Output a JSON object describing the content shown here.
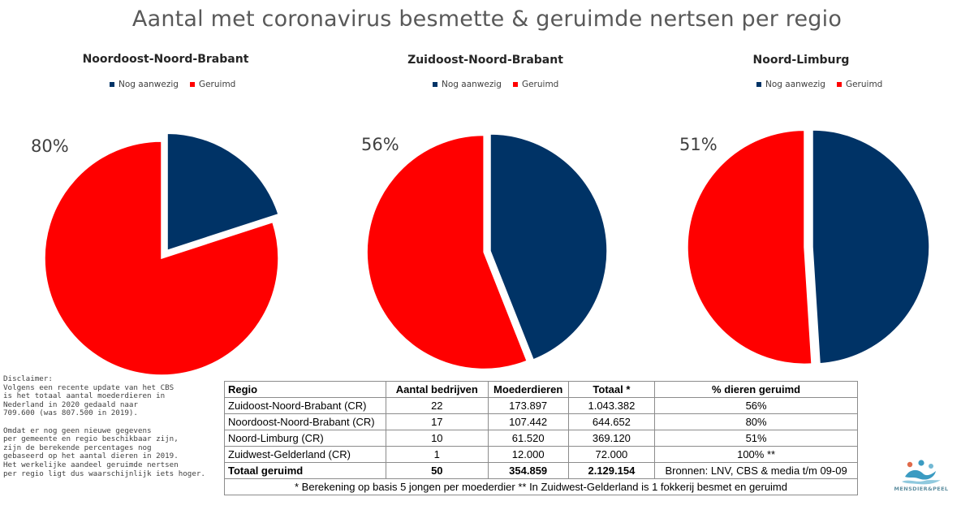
{
  "title": "Aantal met coronavirus besmette & geruimde nertsen per regio",
  "colors": {
    "nog_aanwezig": "#003366",
    "geruimd": "#ff0000"
  },
  "chart_data": [
    {
      "type": "pie",
      "title": "Noordoost-Noord-Brabant",
      "labels": [
        "Nog aanwezig",
        "Geruimd"
      ],
      "values": [
        20,
        80
      ],
      "data_label": "80%",
      "legend": "top",
      "exploded": "Nog aanwezig"
    },
    {
      "type": "pie",
      "title": "Zuidoost-Noord-Brabant",
      "labels": [
        "Nog aanwezig",
        "Geruimd"
      ],
      "values": [
        44,
        56
      ],
      "data_label": "56%",
      "legend": "top",
      "exploded": "Geruimd"
    },
    {
      "type": "pie",
      "title": "Noord-Limburg",
      "labels": [
        "Nog aanwezig",
        "Geruimd"
      ],
      "values": [
        49,
        51
      ],
      "data_label": "51%",
      "legend": "top",
      "exploded": "Geruimd"
    }
  ],
  "disclaimer": {
    "paragraphs": [
      [
        "Disclaimer:",
        "Volgens een recente update van het CBS",
        "is het totaal aantal moederdieren in",
        "Nederland in 2020 gedaald naar",
        "709.600 (was 807.500 in 2019)."
      ],
      [
        "Omdat er nog geen nieuwe gegevens",
        "per gemeente en regio beschikbaar zijn,",
        "zijn de berekende percentages nog",
        "gebaseerd op het aantal dieren in 2019.",
        "Het werkelijke aandeel geruimde nertsen",
        "per regio ligt dus waarschijnlijk iets hoger."
      ]
    ]
  },
  "table": {
    "headers": [
      "Regio",
      "Aantal bedrijven",
      "Moederdieren",
      "Totaal *",
      "% dieren geruimd"
    ],
    "rows": [
      [
        "Zuidoost-Noord-Brabant (CR)",
        "22",
        "173.897",
        "1.043.382",
        "56%"
      ],
      [
        "Noordoost-Noord-Brabant (CR)",
        "17",
        "107.442",
        "644.652",
        "80%"
      ],
      [
        "Noord-Limburg (CR)",
        "10",
        "61.520",
        "369.120",
        "51%"
      ],
      [
        "Zuidwest-Gelderland (CR)",
        "1",
        "12.000",
        "72.000",
        "100% **"
      ]
    ],
    "total": [
      "Totaal geruimd",
      "50",
      "354.859",
      "2.129.154",
      "Bronnen: LNV, CBS & media t/m 09-09"
    ],
    "footnote": "* Berekening op basis 5 jongen per moederdier  ** In Zuidwest-Gelderland is 1 fokkerij besmet en geruimd"
  },
  "logo": {
    "text": "MENSDIER&PEEL",
    "icon": "people-swimming-logo-icon"
  }
}
